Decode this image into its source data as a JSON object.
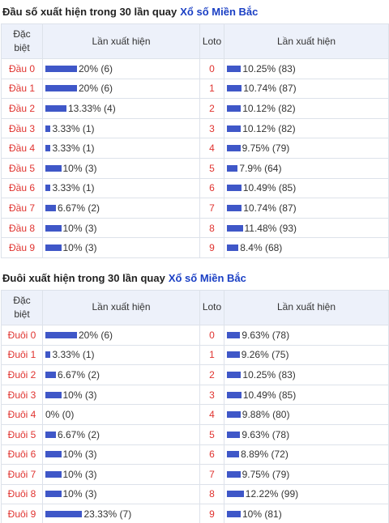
{
  "section1": {
    "title": "Đầu số xuất hiện trong 30 lần quay",
    "link": "Xổ số Miền Bắc",
    "headers": {
      "col1_line1": "Đặc",
      "col1_line2": "biệt",
      "col2": "Lần xuất hiện",
      "col3": "Loto",
      "col4": "Lần xuất hiện"
    },
    "rows": [
      {
        "label": "Đầu 0",
        "text": "20% (6)",
        "pct": 20,
        "loto": "0",
        "loto_text": "10.25% (83)",
        "loto_pct": 10.25
      },
      {
        "label": "Đầu 1",
        "text": "20% (6)",
        "pct": 20,
        "loto": "1",
        "loto_text": "10.74% (87)",
        "loto_pct": 10.74
      },
      {
        "label": "Đầu 2",
        "text": "13.33% (4)",
        "pct": 13.33,
        "loto": "2",
        "loto_text": "10.12% (82)",
        "loto_pct": 10.12
      },
      {
        "label": "Đầu 3",
        "text": "3.33% (1)",
        "pct": 3.33,
        "loto": "3",
        "loto_text": "10.12% (82)",
        "loto_pct": 10.12
      },
      {
        "label": "Đầu 4",
        "text": "3.33% (1)",
        "pct": 3.33,
        "loto": "4",
        "loto_text": "9.75% (79)",
        "loto_pct": 9.75
      },
      {
        "label": "Đầu 5",
        "text": "10% (3)",
        "pct": 10,
        "loto": "5",
        "loto_text": "7.9% (64)",
        "loto_pct": 7.9
      },
      {
        "label": "Đầu 6",
        "text": "3.33% (1)",
        "pct": 3.33,
        "loto": "6",
        "loto_text": "10.49% (85)",
        "loto_pct": 10.49
      },
      {
        "label": "Đầu 7",
        "text": "6.67% (2)",
        "pct": 6.67,
        "loto": "7",
        "loto_text": "10.74% (87)",
        "loto_pct": 10.74
      },
      {
        "label": "Đầu 8",
        "text": "10% (3)",
        "pct": 10,
        "loto": "8",
        "loto_text": "11.48% (93)",
        "loto_pct": 11.48
      },
      {
        "label": "Đầu 9",
        "text": "10% (3)",
        "pct": 10,
        "loto": "9",
        "loto_text": "8.4% (68)",
        "loto_pct": 8.4
      }
    ]
  },
  "section2": {
    "title": "Đuôi xuất hiện trong 30 lần quay",
    "link": "Xổ số Miền Bắc",
    "headers": {
      "col1_line1": "Đặc",
      "col1_line2": "biệt",
      "col2": "Lần xuất hiện",
      "col3": "Loto",
      "col4": "Lần xuất hiện"
    },
    "rows": [
      {
        "label": "Đuôi 0",
        "text": "20% (6)",
        "pct": 20,
        "loto": "0",
        "loto_text": "9.63% (78)",
        "loto_pct": 9.63
      },
      {
        "label": "Đuôi 1",
        "text": "3.33% (1)",
        "pct": 3.33,
        "loto": "1",
        "loto_text": "9.26% (75)",
        "loto_pct": 9.26
      },
      {
        "label": "Đuôi 2",
        "text": "6.67% (2)",
        "pct": 6.67,
        "loto": "2",
        "loto_text": "10.25% (83)",
        "loto_pct": 10.25
      },
      {
        "label": "Đuôi 3",
        "text": "10% (3)",
        "pct": 10,
        "loto": "3",
        "loto_text": "10.49% (85)",
        "loto_pct": 10.49
      },
      {
        "label": "Đuôi 4",
        "text": "0% (0)",
        "pct": 0,
        "loto": "4",
        "loto_text": "9.88% (80)",
        "loto_pct": 9.88
      },
      {
        "label": "Đuôi 5",
        "text": "6.67% (2)",
        "pct": 6.67,
        "loto": "5",
        "loto_text": "9.63% (78)",
        "loto_pct": 9.63
      },
      {
        "label": "Đuôi 6",
        "text": "10% (3)",
        "pct": 10,
        "loto": "6",
        "loto_text": "8.89% (72)",
        "loto_pct": 8.89
      },
      {
        "label": "Đuôi 7",
        "text": "10% (3)",
        "pct": 10,
        "loto": "7",
        "loto_text": "9.75% (79)",
        "loto_pct": 9.75
      },
      {
        "label": "Đuôi 8",
        "text": "10% (3)",
        "pct": 10,
        "loto": "8",
        "loto_text": "12.22% (99)",
        "loto_pct": 12.22
      },
      {
        "label": "Đuôi 9",
        "text": "23.33% (7)",
        "pct": 23.33,
        "loto": "9",
        "loto_text": "10% (81)",
        "loto_pct": 10
      }
    ]
  },
  "colors": {
    "label": "#e0332f",
    "bar": "#3f57c8",
    "header_bg": "#edf1fa",
    "link": "#1a3fc4"
  }
}
